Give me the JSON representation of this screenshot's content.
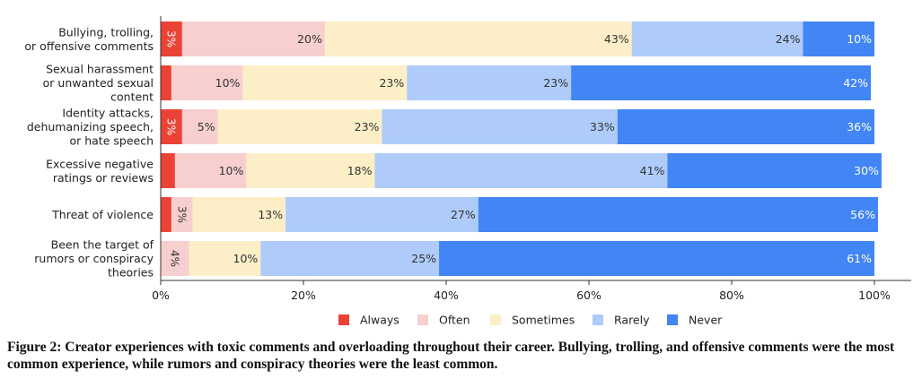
{
  "chart_data": {
    "type": "bar",
    "orientation": "horizontal",
    "stacked": true,
    "categories": [
      [
        "Bullying, trolling,",
        "or offensive comments"
      ],
      [
        "Sexual harassment",
        "or unwanted sexual",
        "content"
      ],
      [
        "Identity attacks,",
        "dehumanizing speech,",
        "or hate speech"
      ],
      [
        "Excessive negative",
        "ratings or reviews"
      ],
      [
        "Threat of violence"
      ],
      [
        "Been the target of",
        "rumors or conspiracy",
        "theories"
      ]
    ],
    "series": [
      {
        "name": "Always",
        "color": "#ea4335",
        "label_color": "#ffffff",
        "values": [
          3,
          1.5,
          3,
          2,
          1.5,
          0
        ]
      },
      {
        "name": "Often",
        "color": "#f7cfcf",
        "label_color": "#333333",
        "values": [
          20,
          10,
          5,
          10,
          3,
          4
        ]
      },
      {
        "name": "Sometimes",
        "color": "#fcefc7",
        "label_color": "#333333",
        "values": [
          43,
          23,
          23,
          18,
          13,
          10
        ]
      },
      {
        "name": "Rarely",
        "color": "#aecbfa",
        "label_color": "#333333",
        "values": [
          24,
          23,
          33,
          41,
          27,
          25
        ]
      },
      {
        "name": "Never",
        "color": "#4285f4",
        "label_color": "#ffffff",
        "values": [
          10,
          42,
          36,
          30,
          56,
          61
        ]
      }
    ],
    "data_labels": [
      [
        "3%",
        "20%",
        "43%",
        "24%",
        "10%"
      ],
      [
        "",
        "10%",
        "23%",
        "23%",
        "42%"
      ],
      [
        "3%",
        "5%",
        "23%",
        "33%",
        "36%"
      ],
      [
        "",
        "10%",
        "18%",
        "41%",
        "30%"
      ],
      [
        "",
        "3%",
        "13%",
        "27%",
        "56%"
      ],
      [
        "",
        "4%",
        "10%",
        "25%",
        "61%"
      ]
    ],
    "xlim": [
      0,
      100
    ],
    "x_ticks": [
      "0%",
      "20%",
      "40%",
      "60%",
      "80%",
      "100%"
    ],
    "legend_position": "bottom",
    "grid": false
  },
  "caption": "Figure 2: Creator experiences with toxic comments and overloading throughout their career. Bullying, trolling, and offensive comments were the most common experience, while rumors and conspiracy theories were the least common."
}
